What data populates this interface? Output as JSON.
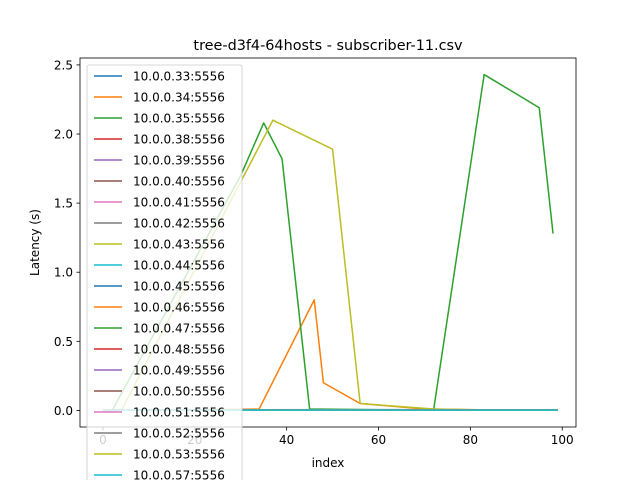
{
  "chart_data": {
    "type": "line",
    "title": "tree-d3f4-64hosts - subscriber-11.csv",
    "xlabel": "index",
    "ylabel": "Latency (s)",
    "xlim": [
      -5,
      103
    ],
    "ylim": [
      -0.12,
      2.55
    ],
    "xticks": [
      0,
      20,
      40,
      60,
      80,
      100
    ],
    "yticks": [
      0.0,
      0.5,
      1.0,
      1.5,
      2.0,
      2.5
    ],
    "xtick_labels": [
      "0",
      "20",
      "40",
      "60",
      "80",
      "100"
    ],
    "ytick_labels": [
      "0.0",
      "0.5",
      "1.0",
      "1.5",
      "2.0",
      "2.5"
    ],
    "legend_position": "upper-left",
    "series": [
      {
        "name": "10.0.0.33:5556",
        "color": "#1f77b4",
        "x": [
          0,
          30,
          60,
          90,
          99
        ],
        "y": [
          0.0,
          0.005,
          0.006,
          0.004,
          0.003
        ]
      },
      {
        "name": "10.0.0.34:5556",
        "color": "#ff7f0e",
        "x": [
          0,
          20,
          34,
          46,
          48,
          56,
          70,
          86
        ],
        "y": [
          0.0,
          0.005,
          0.01,
          0.8,
          0.2,
          0.05,
          0.01,
          0.003
        ]
      },
      {
        "name": "10.0.0.35:5556",
        "color": "#2ca02c",
        "x": [
          0,
          2,
          30,
          35,
          39,
          45,
          60,
          72,
          83,
          95,
          98
        ],
        "y": [
          0.0,
          0.0,
          1.7,
          2.08,
          1.82,
          0.01,
          0.005,
          0.005,
          2.43,
          2.19,
          1.28
        ]
      },
      {
        "name": "10.0.0.38:5556",
        "color": "#d62728",
        "x": [
          60,
          80,
          99
        ],
        "y": [
          0.005,
          0.005,
          0.003
        ]
      },
      {
        "name": "10.0.0.39:5556",
        "color": "#9467bd",
        "x": [
          60,
          80,
          99
        ],
        "y": [
          0.004,
          0.004,
          0.003
        ]
      },
      {
        "name": "10.0.0.40:5556",
        "color": "#8c564b",
        "x": [
          60,
          80,
          99
        ],
        "y": [
          0.004,
          0.004,
          0.003
        ]
      },
      {
        "name": "10.0.0.41:5556",
        "color": "#e377c2",
        "x": [
          0,
          40,
          80,
          99
        ],
        "y": [
          0.002,
          0.002,
          0.002,
          0.002
        ]
      },
      {
        "name": "10.0.0.42:5556",
        "color": "#7f7f7f",
        "x": [
          0,
          40,
          80,
          99
        ],
        "y": [
          0.003,
          0.003,
          0.003,
          0.003
        ]
      },
      {
        "name": "10.0.0.43:5556",
        "color": "#bcbd22",
        "x": [
          4,
          37,
          50,
          56,
          72,
          80
        ],
        "y": [
          0.0,
          2.1,
          1.89,
          0.05,
          0.01,
          0.005
        ]
      },
      {
        "name": "10.0.0.44:5556",
        "color": "#17becf",
        "x": [
          0,
          40,
          80,
          99
        ],
        "y": [
          0.001,
          0.001,
          0.001,
          0.001
        ]
      },
      {
        "name": "10.0.0.45:5556",
        "color": "#1f77b4",
        "x": [
          0,
          30,
          60,
          99
        ],
        "y": [
          0.003,
          0.003,
          0.003,
          0.002
        ]
      },
      {
        "name": "10.0.0.46:5556",
        "color": "#ff7f0e",
        "x": [
          0,
          40,
          80
        ],
        "y": [
          0.003,
          0.003,
          0.003
        ]
      },
      {
        "name": "10.0.0.47:5556",
        "color": "#2ca02c",
        "x": [
          0,
          40,
          80,
          99
        ],
        "y": [
          0.002,
          0.002,
          0.002,
          0.002
        ]
      },
      {
        "name": "10.0.0.48:5556",
        "color": "#d62728",
        "x": [
          0,
          40,
          80,
          99
        ],
        "y": [
          0.002,
          0.002,
          0.002,
          0.002
        ]
      },
      {
        "name": "10.0.0.49:5556",
        "color": "#9467bd",
        "x": [
          0,
          40,
          80,
          99
        ],
        "y": [
          0.002,
          0.002,
          0.002,
          0.002
        ]
      },
      {
        "name": "10.0.0.50:5556",
        "color": "#8c564b",
        "x": [
          0,
          40,
          80,
          99
        ],
        "y": [
          0.002,
          0.002,
          0.002,
          0.002
        ]
      },
      {
        "name": "10.0.0.51:5556",
        "color": "#e377c2",
        "x": [
          0,
          40,
          80,
          99
        ],
        "y": [
          0.002,
          0.002,
          0.002,
          0.002
        ]
      },
      {
        "name": "10.0.0.52:5556",
        "color": "#7f7f7f",
        "x": [
          0,
          40,
          80,
          99
        ],
        "y": [
          0.002,
          0.002,
          0.002,
          0.002
        ]
      },
      {
        "name": "10.0.0.53:5556",
        "color": "#bcbd22",
        "x": [
          0,
          40,
          80,
          99
        ],
        "y": [
          0.002,
          0.002,
          0.002,
          0.002
        ]
      },
      {
        "name": "10.0.0.57:5556",
        "color": "#17becf",
        "x": [
          0,
          40,
          80,
          99
        ],
        "y": [
          0.002,
          0.002,
          0.002,
          0.002
        ]
      }
    ]
  }
}
